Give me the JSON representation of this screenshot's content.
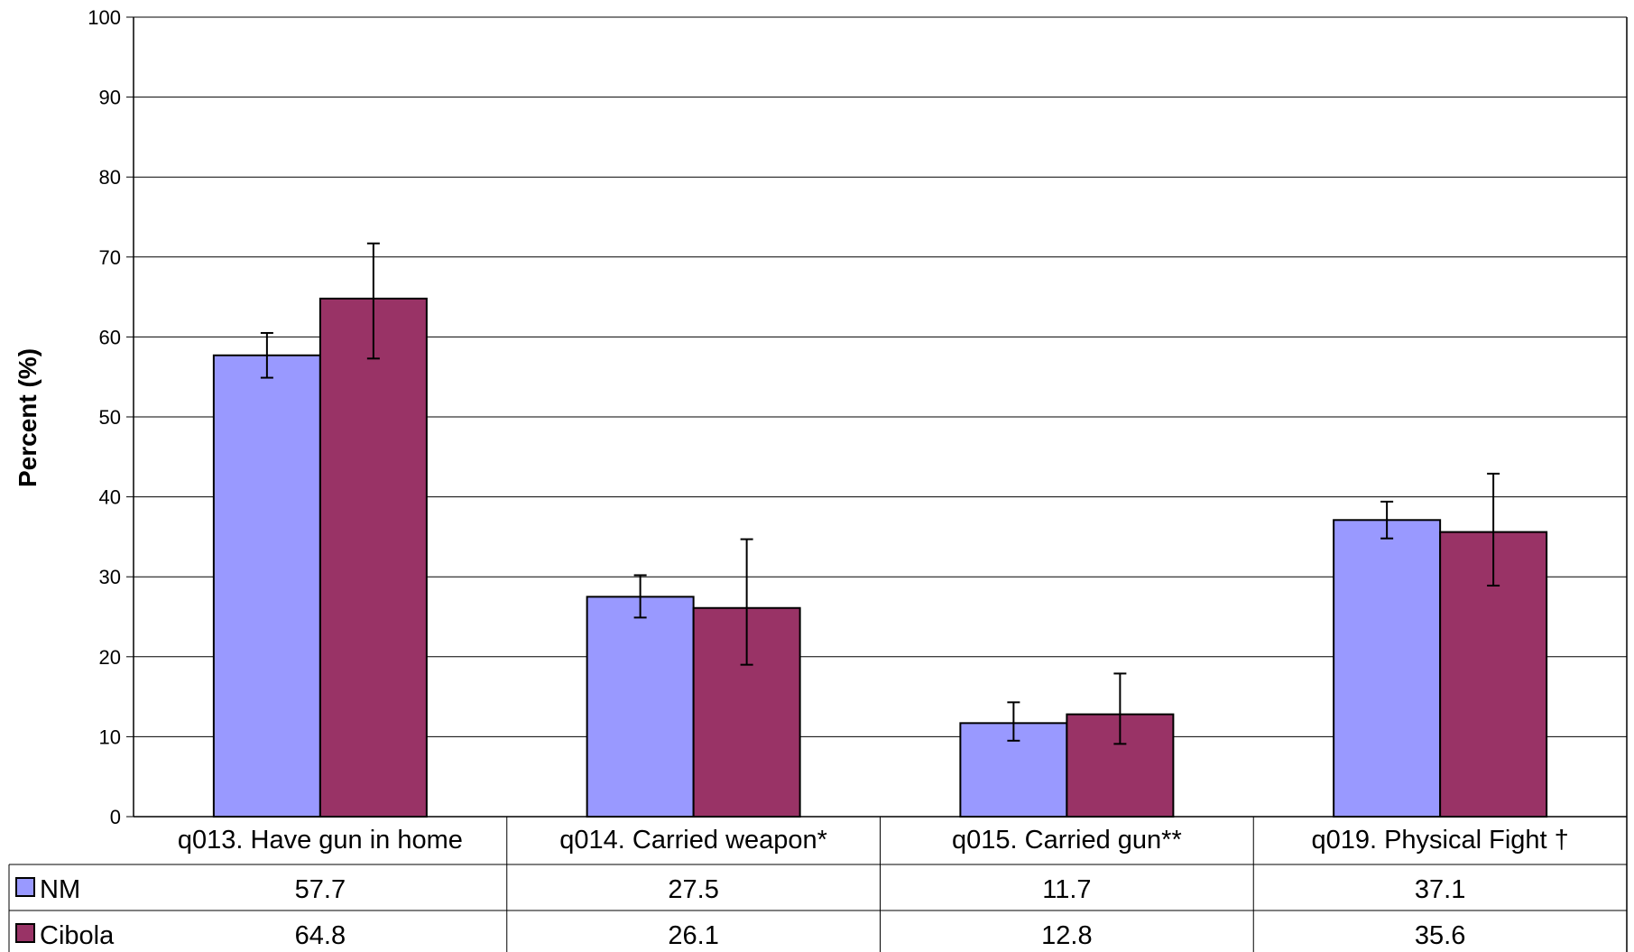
{
  "chart_data": {
    "type": "bar",
    "ylabel": "Percent (%)",
    "ylim": [
      0,
      100
    ],
    "y_ticks": [
      "0",
      "10",
      "20",
      "30",
      "40",
      "50",
      "60",
      "70",
      "80",
      "90",
      "100"
    ],
    "grid": true,
    "categories": [
      "q013. Have gun in home",
      "q014. Carried weapon*",
      "q015. Carried gun**",
      "q019. Physical Fight †"
    ],
    "series": [
      {
        "name": "NM",
        "color": "#9999ff",
        "values": [
          57.7,
          27.5,
          11.7,
          37.1
        ],
        "value_labels": [
          "57.7",
          "27.5",
          "11.7",
          "37.1"
        ],
        "error_low": [
          54.9,
          24.9,
          9.5,
          34.8
        ],
        "error_high": [
          60.5,
          30.2,
          14.3,
          39.4
        ]
      },
      {
        "name": "Cibola",
        "color": "#993366",
        "values": [
          64.8,
          26.1,
          12.8,
          35.6
        ],
        "value_labels": [
          "64.8",
          "26.1",
          "12.8",
          "35.6"
        ],
        "error_low": [
          57.3,
          19.0,
          9.1,
          28.9
        ],
        "error_high": [
          71.7,
          34.7,
          17.9,
          42.9
        ]
      }
    ],
    "legend": "data-table"
  }
}
